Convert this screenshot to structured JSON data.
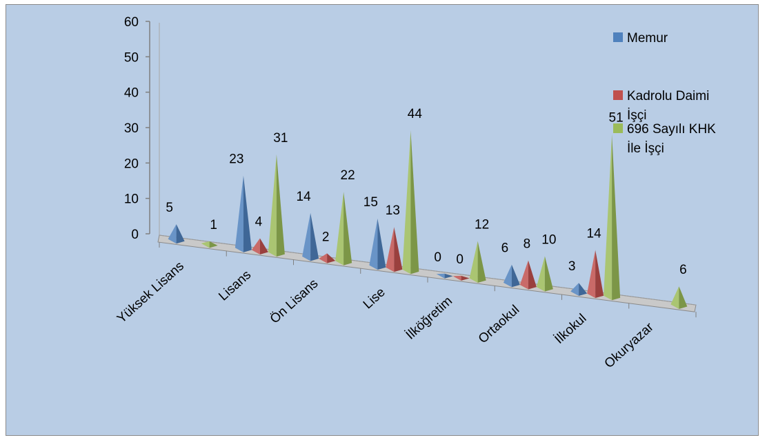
{
  "chart_data": {
    "type": "bar",
    "subtype": "3d-pyramid",
    "title": "",
    "xlabel": "",
    "ylabel": "",
    "ylim": [
      0,
      60
    ],
    "yticks": [
      "0",
      "10",
      "20",
      "30",
      "40",
      "50",
      "60"
    ],
    "categories": [
      "Yüksek Lisans",
      "Lisans",
      "Ön Lisans",
      "Lise",
      "İlköğretim",
      "Ortaokul",
      "İlkokul",
      "Okuryazar"
    ],
    "series": [
      {
        "name": "Memur",
        "color": "#4f81bd",
        "values": [
          5,
          23,
          14,
          15,
          0,
          6,
          3,
          null
        ]
      },
      {
        "name": "Kadrolu Daimi İşçi",
        "color": "#c0504d",
        "values": [
          null,
          4,
          2,
          13,
          0,
          8,
          14,
          null
        ]
      },
      {
        "name": "696  Sayılı KHK İle İşçi",
        "color": "#9bbb59",
        "values": [
          1,
          31,
          22,
          44,
          12,
          10,
          51,
          6
        ]
      }
    ],
    "legend_position": "right",
    "legend_lines": [
      [
        "Memur"
      ],
      [
        "Kadrolu Daimi",
        "İşçi"
      ],
      [
        "696  Sayılı KHK",
        "İle İşçi"
      ]
    ],
    "grid": false
  }
}
